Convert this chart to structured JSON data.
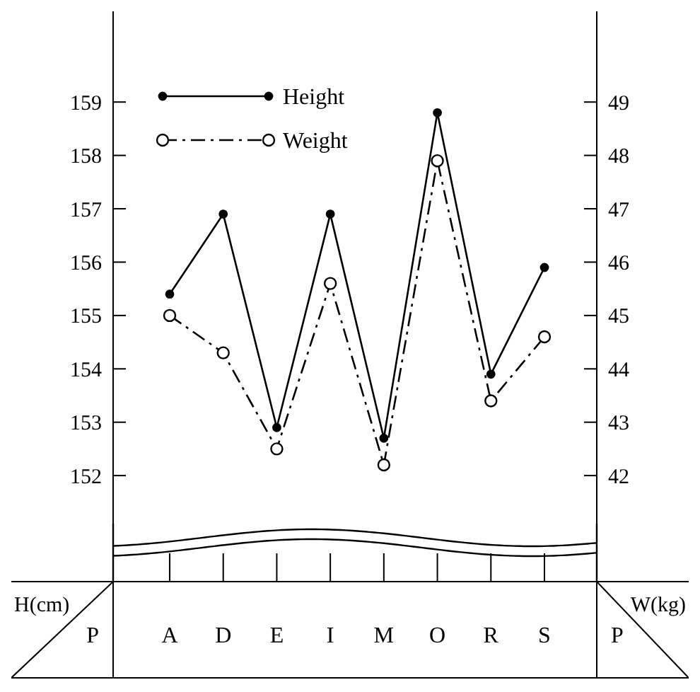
{
  "chart_data": {
    "type": "line",
    "categories": [
      "A",
      "D",
      "E",
      "I",
      "M",
      "O",
      "R",
      "S"
    ],
    "ylabel": "H(cm)",
    "y2label": "W(kg)",
    "ylim": [
      151.1,
      160.7
    ],
    "yticks": [
      152,
      153,
      154,
      155,
      156,
      157,
      158,
      159
    ],
    "y2lim": [
      41.1,
      50.7
    ],
    "y2ticks": [
      42,
      43,
      44,
      45,
      46,
      47,
      48,
      49
    ],
    "series": [
      {
        "name": "Height",
        "color": "#000000",
        "line_style": "solid",
        "marker": "circle",
        "values": [
          155.4,
          156.9,
          152.9,
          156.9,
          152.7,
          158.8,
          153.9,
          155.9
        ]
      },
      {
        "name": "Weight",
        "color": "#000000",
        "axis": "y2",
        "line_style": "dashed",
        "marker": "circle",
        "values": [
          45.0,
          44.3,
          42.5,
          45.6,
          42.2,
          47.9,
          43.4,
          44.6
        ]
      }
    ],
    "legend": "top left",
    "grid": false,
    "annotations": [
      "P",
      "P"
    ]
  }
}
